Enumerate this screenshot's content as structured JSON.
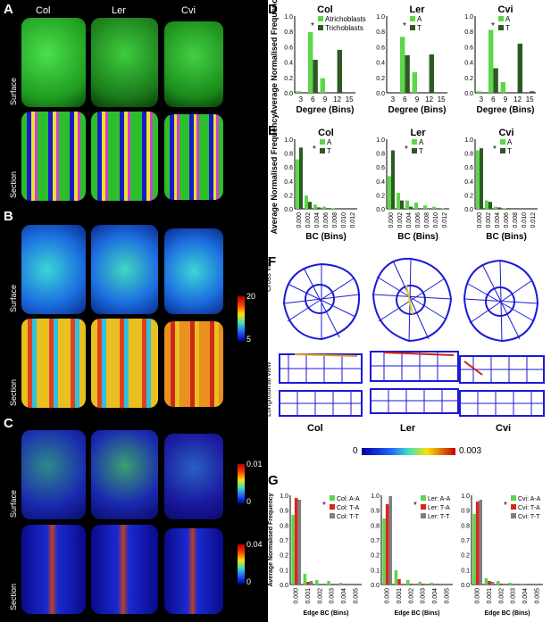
{
  "panel_letters": {
    "A": "A",
    "B": "B",
    "C": "C",
    "D": "D",
    "E": "E",
    "F": "F",
    "G": "G"
  },
  "strains": [
    "Col",
    "Ler",
    "Cvi"
  ],
  "row_labels": {
    "surface": "Surface",
    "section": "Section"
  },
  "colorbar_B": {
    "max": "20",
    "min": "5"
  },
  "colorbar_C_surface": {
    "max": "0.01",
    "min": "0"
  },
  "colorbar_C_section": {
    "max": "0.04",
    "min": "0"
  },
  "panel_F": {
    "cross_view": "Cross view",
    "longitudinal_view": "Longitudinal view",
    "scale_min": "0",
    "scale_max": "0.003"
  },
  "colors": {
    "atrichoblast": "#5dd64a",
    "trichoblast": "#2c5a22",
    "red": "#d9251d",
    "grey": "#7f7f7f"
  },
  "chart_data": [
    {
      "type": "bar",
      "panel": "D",
      "title": "Col",
      "xlabel": "Degree (Bins)",
      "ylabel": "Average Normalised Frequency",
      "categories": [
        "3",
        "6",
        "9",
        "12",
        "15"
      ],
      "ylim": [
        0,
        1
      ],
      "yticks": [
        "0.0",
        "0.2",
        "0.4",
        "0.6",
        "0.8",
        "1.0"
      ],
      "series": [
        {
          "name": "Atrichoblasts",
          "values": [
            0.02,
            0.79,
            0.19,
            0.0,
            0.0
          ]
        },
        {
          "name": "Trichoblasts",
          "values": [
            0.0,
            0.43,
            0.0,
            0.56,
            0.0
          ]
        }
      ],
      "annotation": "*"
    },
    {
      "type": "bar",
      "panel": "D",
      "title": "Ler",
      "xlabel": "Degree (Bins)",
      "categories": [
        "3",
        "6",
        "9",
        "12",
        "15"
      ],
      "ylim": [
        0,
        1
      ],
      "series": [
        {
          "name": "A",
          "values": [
            0.0,
            0.73,
            0.27,
            0.0,
            0.0
          ]
        },
        {
          "name": "T",
          "values": [
            0.0,
            0.49,
            0.0,
            0.5,
            0.0
          ]
        }
      ],
      "annotation": "*"
    },
    {
      "type": "bar",
      "panel": "D",
      "title": "Cvi",
      "xlabel": "Degree (Bins)",
      "categories": [
        "3",
        "6",
        "9",
        "12",
        "15"
      ],
      "ylim": [
        0,
        1
      ],
      "series": [
        {
          "name": "A",
          "values": [
            0.02,
            0.82,
            0.14,
            0.0,
            0.0
          ]
        },
        {
          "name": "T",
          "values": [
            0.0,
            0.32,
            0.0,
            0.64,
            0.02
          ]
        }
      ],
      "annotation": "*"
    },
    {
      "type": "bar",
      "panel": "E",
      "title": "Col",
      "xlabel": "BC (Bins)",
      "ylabel": "Average Normalised Frequency",
      "categories": [
        "0.000",
        "0.002",
        "0.004",
        "0.006",
        "0.008",
        "0.010",
        "0.012"
      ],
      "ylim": [
        0,
        1
      ],
      "yticks": [
        "0.0",
        "0.2",
        "0.4",
        "0.6",
        "0.8",
        "1.0"
      ],
      "series": [
        {
          "name": "A",
          "values": [
            0.71,
            0.19,
            0.06,
            0.03,
            0.01,
            0.0,
            0.0
          ]
        },
        {
          "name": "T",
          "values": [
            0.88,
            0.1,
            0.02,
            0.01,
            0.0,
            0.0,
            0.0
          ]
        }
      ],
      "annotation": "*"
    },
    {
      "type": "bar",
      "panel": "E",
      "title": "Ler",
      "xlabel": "BC (Bins)",
      "categories": [
        "0.000",
        "0.002",
        "0.004",
        "0.006",
        "0.008",
        "0.010",
        "0.012"
      ],
      "ylim": [
        0,
        1
      ],
      "series": [
        {
          "name": "A",
          "values": [
            0.47,
            0.23,
            0.12,
            0.09,
            0.05,
            0.03,
            0.01
          ]
        },
        {
          "name": "T",
          "values": [
            0.84,
            0.12,
            0.03,
            0.01,
            0.0,
            0.0,
            0.0
          ]
        }
      ],
      "annotation": "*"
    },
    {
      "type": "bar",
      "panel": "E",
      "title": "Cvi",
      "xlabel": "BC (Bins)",
      "categories": [
        "0.000",
        "0.002",
        "0.004",
        "0.006",
        "0.008",
        "0.010",
        "0.012"
      ],
      "ylim": [
        0,
        1
      ],
      "series": [
        {
          "name": "A",
          "values": [
            0.84,
            0.12,
            0.03,
            0.01,
            0.0,
            0.0,
            0.0
          ]
        },
        {
          "name": "T",
          "values": [
            0.87,
            0.1,
            0.02,
            0.01,
            0.0,
            0.0,
            0.0
          ]
        }
      ],
      "annotation": "*"
    },
    {
      "type": "bar",
      "panel": "G",
      "xlabel": "Edge BC (Bins)",
      "ylabel": "Average Normalised Frequency",
      "categories": [
        "0.000",
        "0.001",
        "0.002",
        "0.003",
        "0.004",
        "0.005"
      ],
      "yticks": [
        "0.0",
        "0.1",
        "0.2",
        "0.7",
        "0.8",
        "0.9",
        "1.0"
      ],
      "series": [
        {
          "name": "Col: A-A",
          "values": [
            0.78,
            0.12,
            0.05,
            0.04,
            0.02,
            0.0
          ]
        },
        {
          "name": "Col: T-A",
          "values": [
            0.97,
            0.03,
            0.0,
            0.0,
            0.0,
            0.0
          ]
        },
        {
          "name": "Col: T-T",
          "values": [
            0.95,
            0.04,
            0.01,
            0.0,
            0.0,
            0.0
          ]
        }
      ],
      "annotation": "*"
    },
    {
      "type": "bar",
      "panel": "G",
      "xlabel": "Edge BC (Bins)",
      "categories": [
        "0.000",
        "0.001",
        "0.002",
        "0.003",
        "0.004",
        "0.005"
      ],
      "series": [
        {
          "name": "Ler: A-A",
          "values": [
            0.74,
            0.16,
            0.05,
            0.03,
            0.02,
            0.0
          ]
        },
        {
          "name": "Ler: T-A",
          "values": [
            0.9,
            0.06,
            0.01,
            0.01,
            0.0,
            0.0
          ]
        },
        {
          "name": "Ler: T-T",
          "values": [
            0.99,
            0.01,
            0.0,
            0.0,
            0.0,
            0.0
          ]
        }
      ],
      "annotation": "*"
    },
    {
      "type": "bar",
      "panel": "G",
      "xlabel": "Edge BC (Bins)",
      "categories": [
        "0.000",
        "0.001",
        "0.002",
        "0.003",
        "0.004",
        "0.005"
      ],
      "series": [
        {
          "name": "Cvi: A-A",
          "values": [
            0.79,
            0.07,
            0.04,
            0.02,
            0.01,
            0.0
          ]
        },
        {
          "name": "Cvi: T-A",
          "values": [
            0.93,
            0.04,
            0.01,
            0.0,
            0.0,
            0.0
          ]
        },
        {
          "name": "Cvi: T-T",
          "values": [
            0.95,
            0.03,
            0.01,
            0.0,
            0.0,
            0.0
          ]
        }
      ],
      "annotation": "*"
    }
  ]
}
